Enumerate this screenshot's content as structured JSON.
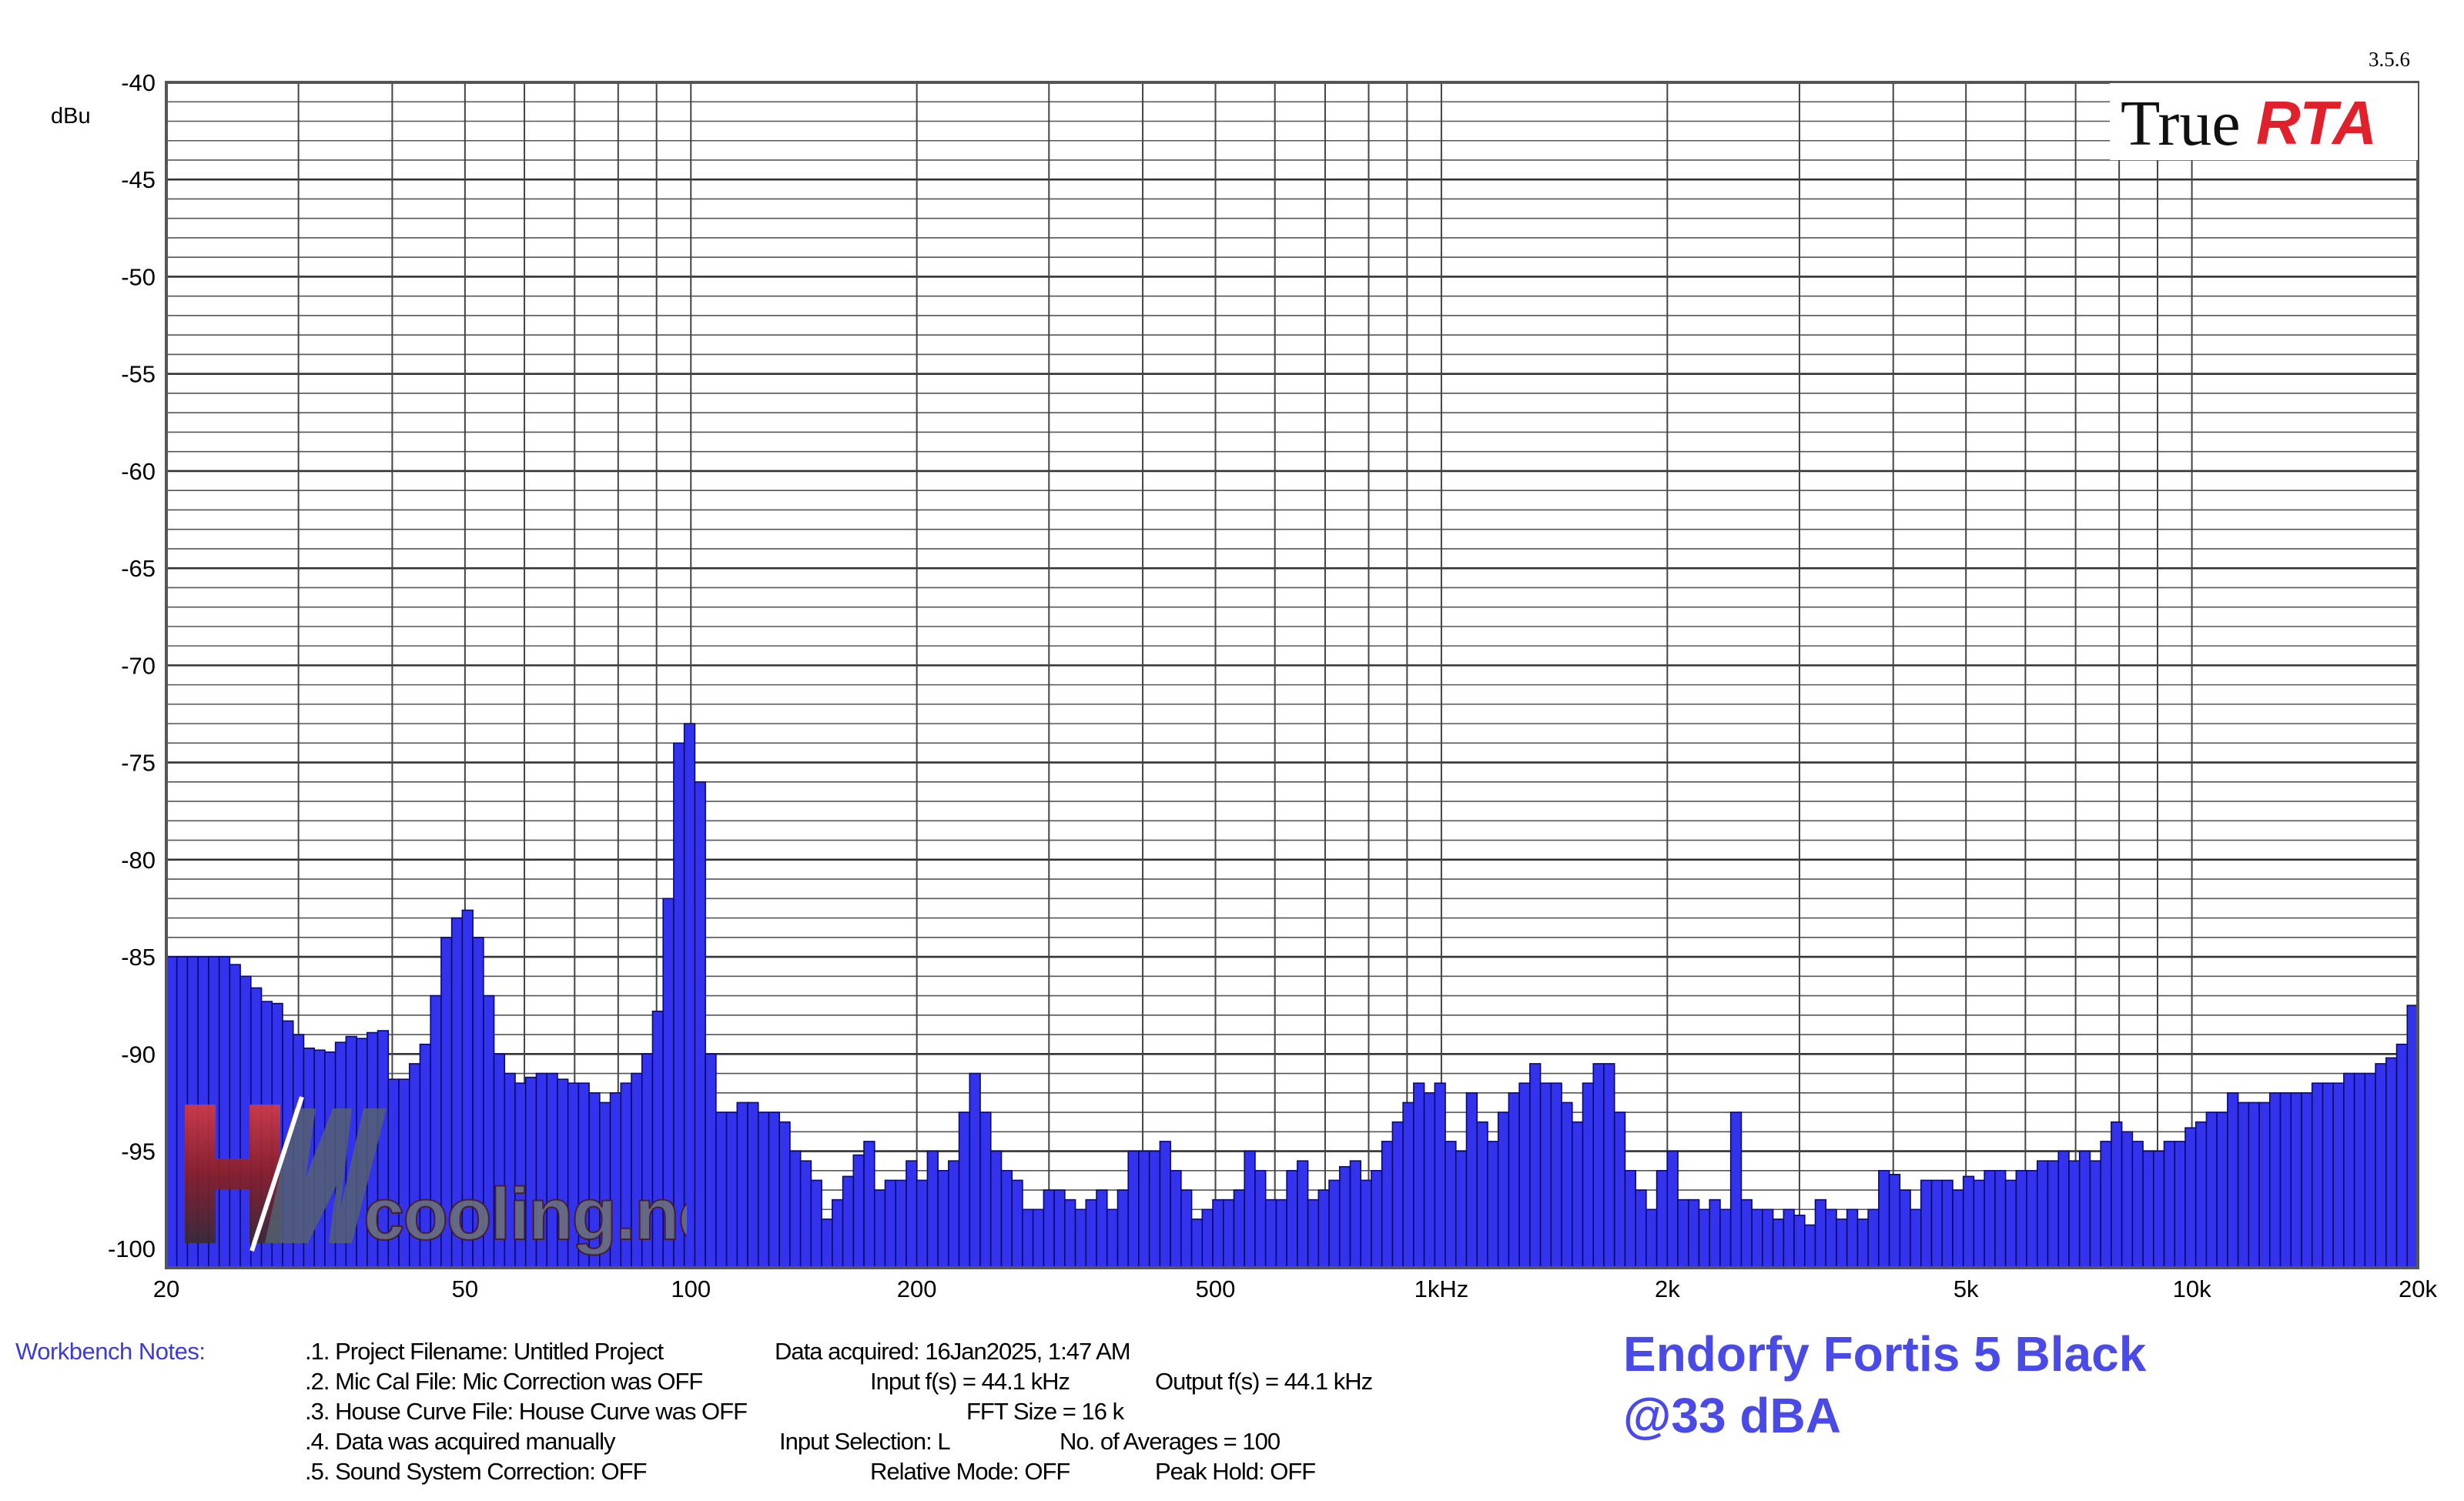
{
  "app": {
    "version": "3.5.6",
    "logo_true": "True",
    "logo_rta": "RTA",
    "watermark": "HWcooling.net"
  },
  "notes": {
    "label": "Workbench Notes:",
    "lines": [
      ".1. Project Filename: Untitled Project",
      ".2. Mic Cal File: Mic Correction was OFF",
      ".3. House Curve File: House Curve was OFF",
      ".4. Data was acquired manually",
      ".5. Sound System Correction: OFF"
    ],
    "data_acquired": "Data acquired: 16Jan2025, 1:47 AM",
    "input_fs": "Input f(s) = 44.1 kHz",
    "output_fs": "Output f(s) = 44.1 kHz",
    "fft_size": "FFT Size = 16 k",
    "input_selection": "Input Selection: L",
    "averages": "No. of Averages = 100",
    "relative_mode": "Relative Mode:  OFF",
    "peak_hold": "Peak Hold: OFF"
  },
  "headline": {
    "line1": "Endorfy Fortis 5 Black",
    "line2": "@33 dBA"
  },
  "colors": {
    "bar_fill": "#3333ee",
    "bar_stroke": "#0a0a6e",
    "headline": "#4a4ae6",
    "notes_label": "#3b3bd6",
    "logo_rta": "#e0202a"
  },
  "chart_data": {
    "type": "bar",
    "ylabel": "dBu",
    "y_unit": "dBu",
    "ylim": [
      -101,
      -40
    ],
    "xlim": [
      20,
      20000
    ],
    "x_scale": "log",
    "grid": true,
    "y_ticks": [
      -40,
      -45,
      -50,
      -55,
      -60,
      -65,
      -70,
      -75,
      -80,
      -85,
      -90,
      -95,
      -100
    ],
    "x_ticks": [
      {
        "value": 20,
        "label": "20"
      },
      {
        "value": 50,
        "label": "50"
      },
      {
        "value": 100,
        "label": "100"
      },
      {
        "value": 200,
        "label": "200"
      },
      {
        "value": 500,
        "label": "500"
      },
      {
        "value": 1000,
        "label": "1kHz"
      },
      {
        "value": 2000,
        "label": "2k"
      },
      {
        "value": 5000,
        "label": "5k"
      },
      {
        "value": 10000,
        "label": "10k"
      },
      {
        "value": 20000,
        "label": "20k"
      }
    ],
    "bins_per_octave": 24,
    "values": [
      -85.0,
      -85.0,
      -85.0,
      -85.0,
      -85.0,
      -85.0,
      -85.4,
      -86.0,
      -86.6,
      -87.3,
      -87.4,
      -88.3,
      -89.0,
      -89.7,
      -89.8,
      -89.9,
      -89.4,
      -89.1,
      -89.2,
      -88.9,
      -88.8,
      -91.3,
      -91.3,
      -90.5,
      -89.5,
      -87.0,
      -84.0,
      -83.0,
      -82.6,
      -84.0,
      -87.0,
      -90.0,
      -91.0,
      -91.5,
      -91.2,
      -91.0,
      -91.0,
      -91.3,
      -91.5,
      -91.5,
      -92.0,
      -92.5,
      -92.0,
      -91.5,
      -91.0,
      -90.0,
      -87.8,
      -82.0,
      -74.0,
      -73.0,
      -76.0,
      -90.0,
      -93.0,
      -93.0,
      -92.5,
      -92.5,
      -93.0,
      -93.0,
      -93.5,
      -95.0,
      -95.5,
      -96.5,
      -98.5,
      -97.5,
      -96.3,
      -95.2,
      -94.5,
      -97.0,
      -96.5,
      -96.5,
      -95.5,
      -96.5,
      -95.0,
      -96.0,
      -95.5,
      -93.0,
      -91.0,
      -93.0,
      -95.0,
      -96.0,
      -96.5,
      -98.0,
      -98.0,
      -97.0,
      -97.0,
      -97.5,
      -98.0,
      -97.5,
      -97.0,
      -98.0,
      -97.0,
      -95.0,
      -95.0,
      -95.0,
      -94.5,
      -96.0,
      -97.0,
      -98.5,
      -98.0,
      -97.5,
      -97.5,
      -97.0,
      -95.0,
      -96.0,
      -97.5,
      -97.5,
      -96.0,
      -95.5,
      -97.5,
      -97.0,
      -96.5,
      -95.8,
      -95.5,
      -96.5,
      -96.0,
      -94.5,
      -93.5,
      -92.5,
      -91.5,
      -92.0,
      -91.5,
      -94.5,
      -95.0,
      -92.0,
      -93.5,
      -94.5,
      -93.0,
      -92.0,
      -91.5,
      -90.5,
      -91.5,
      -91.5,
      -92.5,
      -93.5,
      -91.5,
      -90.5,
      -90.5,
      -93.0,
      -96.0,
      -97.0,
      -98.0,
      -96.0,
      -95.0,
      -97.5,
      -97.5,
      -98.0,
      -97.5,
      -98.0,
      -93.0,
      -97.5,
      -98.0,
      -98.0,
      -98.5,
      -98.0,
      -98.3,
      -98.8,
      -97.5,
      -98.0,
      -98.5,
      -98.0,
      -98.5,
      -98.0,
      -96.0,
      -96.2,
      -97.0,
      -98.0,
      -96.5,
      -96.5,
      -96.5,
      -97.0,
      -96.3,
      -96.5,
      -96.0,
      -96.0,
      -96.5,
      -96.0,
      -96.0,
      -95.5,
      -95.5,
      -95.0,
      -95.5,
      -95.0,
      -95.5,
      -94.5,
      -93.5,
      -94.0,
      -94.5,
      -95.0,
      -95.0,
      -94.5,
      -94.5,
      -93.8,
      -93.5,
      -93.0,
      -93.0,
      -92.0,
      -92.5,
      -92.5,
      -92.5,
      -92.0,
      -92.0,
      -92.0,
      -92.0,
      -91.5,
      -91.5,
      -91.5,
      -91.0,
      -91.0,
      -91.0,
      -90.5,
      -90.2,
      -89.5,
      -87.5
    ]
  }
}
